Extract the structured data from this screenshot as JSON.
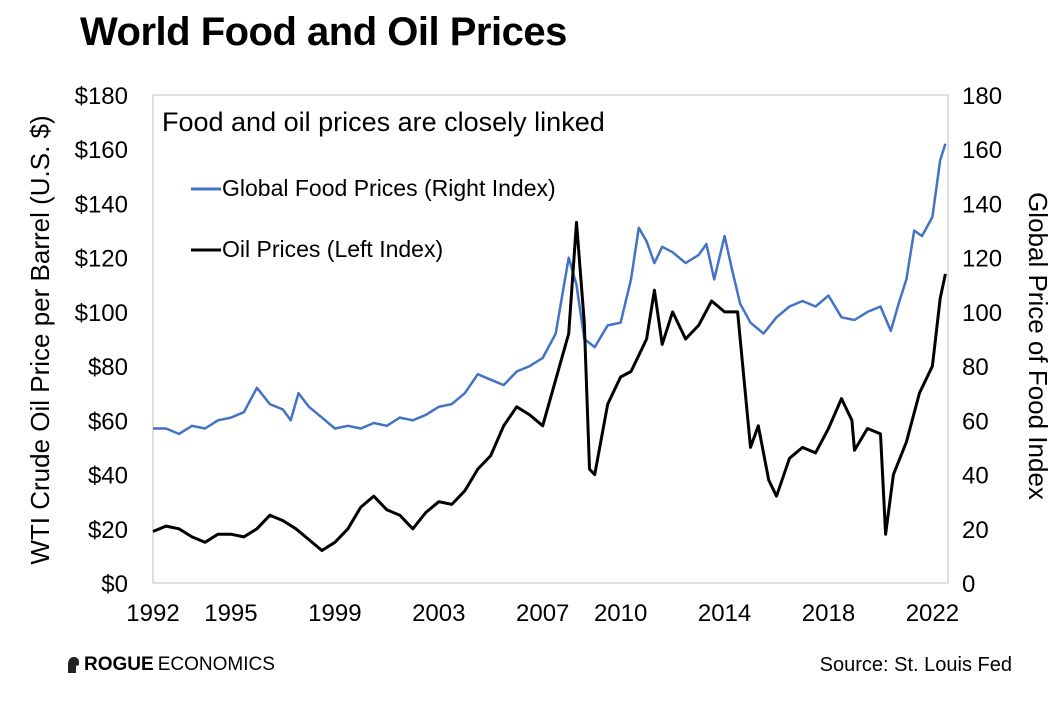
{
  "title": "World Food and Oil Prices",
  "footer": {
    "logo_bold": "ROGUE",
    "logo_rest": "ECONOMICS",
    "source": "Source: St. Louis Fed"
  },
  "chart_data": {
    "type": "line",
    "title": "World Food and Oil Prices",
    "annotation": "Food and oil prices are closely linked",
    "ylabel_left": "WTI Crude Oil Price per Barrel (U.S. $)",
    "ylabel_right": "Global Price of Food Index",
    "x_ticks": [
      "1992",
      "1995",
      "1999",
      "2003",
      "2007",
      "2010",
      "2014",
      "2018",
      "2022"
    ],
    "xlim": [
      1992,
      2022.6
    ],
    "y_left_ticks": [
      "$0",
      "$20",
      "$40",
      "$60",
      "$80",
      "$100",
      "$120",
      "$140",
      "$160",
      "$180"
    ],
    "y_left_lim": [
      0,
      180
    ],
    "y_right_ticks": [
      "0",
      "20",
      "40",
      "60",
      "80",
      "100",
      "120",
      "140",
      "160",
      "180"
    ],
    "y_right_lim": [
      0,
      180
    ],
    "legend_placement": "upper-left",
    "grid": false,
    "series": [
      {
        "name": "Global Food Prices (Right Index)",
        "axis": "right",
        "color": "#4472c4",
        "x": [
          1992,
          1992.5,
          1993,
          1993.5,
          1994,
          1994.5,
          1995,
          1995.5,
          1996,
          1996.5,
          1997,
          1997.3,
          1997.6,
          1998,
          1998.5,
          1999,
          1999.5,
          2000,
          2000.5,
          2001,
          2001.5,
          2002,
          2002.5,
          2003,
          2003.5,
          2004,
          2004.5,
          2005,
          2005.5,
          2006,
          2006.5,
          2007,
          2007.5,
          2008,
          2008.3,
          2008.6,
          2009,
          2009.5,
          2010,
          2010.4,
          2010.7,
          2011,
          2011.3,
          2011.6,
          2012,
          2012.5,
          2013,
          2013.3,
          2013.6,
          2014,
          2014.3,
          2014.6,
          2015,
          2015.5,
          2016,
          2016.5,
          2017,
          2017.5,
          2018,
          2018.5,
          2019,
          2019.5,
          2020,
          2020.4,
          2020.7,
          2021,
          2021.3,
          2021.6,
          2022,
          2022.3,
          2022.5
        ],
        "values": [
          57,
          57,
          55,
          58,
          57,
          60,
          61,
          63,
          72,
          66,
          64,
          60,
          70,
          65,
          61,
          57,
          58,
          57,
          59,
          58,
          61,
          60,
          62,
          65,
          66,
          70,
          77,
          75,
          73,
          78,
          80,
          83,
          92,
          120,
          110,
          90,
          87,
          95,
          96,
          112,
          131,
          126,
          118,
          124,
          122,
          118,
          121,
          125,
          112,
          128,
          115,
          103,
          96,
          92,
          98,
          102,
          104,
          102,
          106,
          98,
          97,
          100,
          102,
          93,
          103,
          112,
          130,
          128,
          135,
          156,
          162
        ]
      },
      {
        "name": "Oil Prices (Left Index)",
        "axis": "left",
        "color": "#000000",
        "x": [
          1992,
          1992.5,
          1993,
          1993.5,
          1994,
          1994.5,
          1995,
          1995.5,
          1996,
          1996.5,
          1997,
          1997.5,
          1998,
          1998.5,
          1999,
          1999.5,
          2000,
          2000.5,
          2001,
          2001.5,
          2002,
          2002.5,
          2003,
          2003.5,
          2004,
          2004.5,
          2005,
          2005.5,
          2006,
          2006.5,
          2007,
          2007.5,
          2008,
          2008.3,
          2008.6,
          2008.8,
          2009,
          2009.5,
          2010,
          2010.4,
          2010.7,
          2011,
          2011.3,
          2011.6,
          2012,
          2012.5,
          2013,
          2013.5,
          2014,
          2014.5,
          2015,
          2015.3,
          2015.7,
          2016,
          2016.5,
          2017,
          2017.5,
          2018,
          2018.5,
          2018.9,
          2019,
          2019.5,
          2020,
          2020.2,
          2020.5,
          2021,
          2021.5,
          2022,
          2022.3,
          2022.5
        ],
        "values": [
          19,
          21,
          20,
          17,
          15,
          18,
          18,
          17,
          20,
          25,
          23,
          20,
          16,
          12,
          15,
          20,
          28,
          32,
          27,
          25,
          20,
          26,
          30,
          29,
          34,
          42,
          47,
          58,
          65,
          62,
          58,
          75,
          92,
          133,
          96,
          42,
          40,
          66,
          76,
          78,
          84,
          90,
          108,
          88,
          100,
          90,
          95,
          104,
          100,
          100,
          50,
          58,
          38,
          32,
          46,
          50,
          48,
          57,
          68,
          60,
          49,
          57,
          55,
          18,
          40,
          52,
          70,
          80,
          105,
          114
        ]
      }
    ]
  }
}
